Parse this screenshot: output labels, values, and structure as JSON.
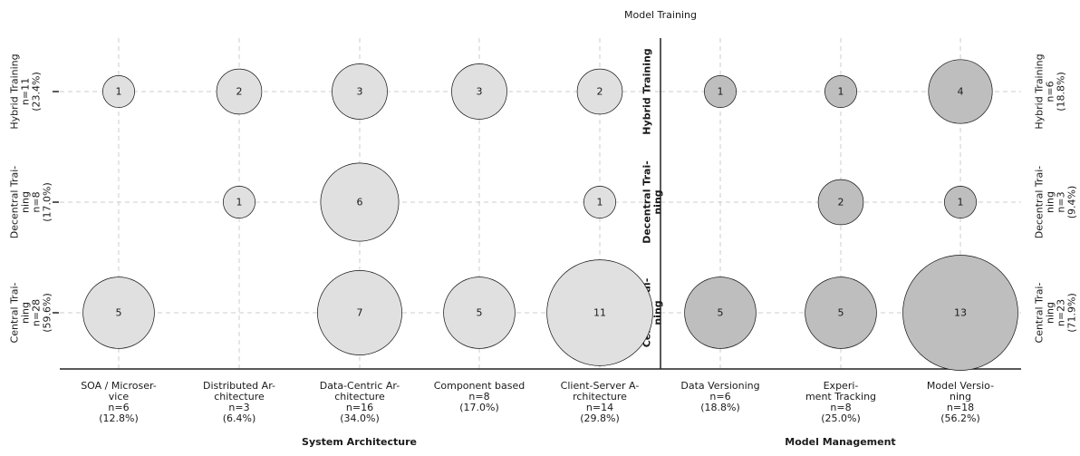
{
  "chart_data": {
    "type": "scatter",
    "title": "Model Training",
    "rows": [
      {
        "key": "hybrid",
        "label": [
          "Hybrid Training"
        ],
        "left": [
          "Hybrid Training",
          "n=11",
          "(23.4%)"
        ],
        "right": [
          "Hybrid Training",
          "n=6",
          "(18.8%)"
        ]
      },
      {
        "key": "decentral",
        "label": [
          "Decentral Trai-",
          "ning"
        ],
        "left": [
          "Decentral Trai-",
          "ning",
          "n=8",
          "(17.0%)"
        ],
        "right": [
          "Decentral Trai-",
          "ning",
          "n=3",
          "(9.4%)"
        ]
      },
      {
        "key": "central",
        "label": [
          "Central Trai-",
          "ning"
        ],
        "left": [
          "Central Trai-",
          "ning",
          "n=28",
          "(59.6%)"
        ],
        "right": [
          "Central Trai-",
          "ning",
          "n=23",
          "(71.9%)"
        ]
      }
    ],
    "panels": [
      {
        "xlabel": "System Architecture",
        "color": "#e0e0e0",
        "categories": [
          {
            "label": [
              "SOA / Microser-",
              "vice",
              "n=6",
              "(12.8%)"
            ],
            "values": [
              1,
              0,
              5
            ]
          },
          {
            "label": [
              "Distributed Ar-",
              "chitecture",
              "n=3",
              "(6.4%)"
            ],
            "values": [
              2,
              1,
              0
            ]
          },
          {
            "label": [
              "Data-Centric Ar-",
              "chitecture",
              "n=16",
              "(34.0%)"
            ],
            "values": [
              3,
              6,
              7
            ]
          },
          {
            "label": [
              "Component based",
              "n=8",
              "(17.0%)"
            ],
            "values": [
              3,
              0,
              5
            ]
          },
          {
            "label": [
              "Client-Server A-",
              "rchitecture",
              "n=14",
              "(29.8%)"
            ],
            "values": [
              2,
              1,
              11
            ]
          }
        ]
      },
      {
        "xlabel": "Model Management",
        "color": "#bebebe",
        "categories": [
          {
            "label": [
              "Data Versioning",
              "n=6",
              "(18.8%)"
            ],
            "values": [
              1,
              0,
              5
            ]
          },
          {
            "label": [
              "Experi-",
              "ment Tracking",
              "n=8",
              "(25.0%)"
            ],
            "values": [
              1,
              2,
              5
            ]
          },
          {
            "label": [
              "Model Versio-",
              "ning",
              "n=18",
              "(56.2%)"
            ],
            "values": [
              4,
              1,
              13
            ]
          }
        ]
      }
    ],
    "grid": true
  }
}
